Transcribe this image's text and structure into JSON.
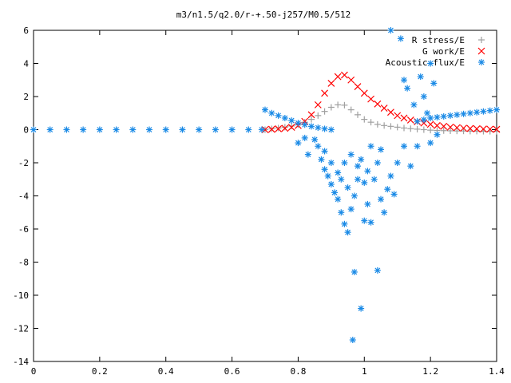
{
  "chart_data": {
    "type": "scatter",
    "title": "m3/n1.5/q2.0/r-+.50-j257/M0.5/512",
    "xlabel": "",
    "ylabel": "",
    "xlim": [
      0,
      1.4
    ],
    "ylim": [
      -14,
      6
    ],
    "xticks": [
      0,
      0.2,
      0.4,
      0.6,
      0.8,
      1,
      1.2,
      1.4
    ],
    "xtick_labels": [
      "0",
      "0.2",
      "0.4",
      "0.6",
      "0.8",
      "1",
      "1.2",
      "1.4"
    ],
    "yticks": [
      -14,
      -12,
      -10,
      -8,
      -6,
      -4,
      -2,
      0,
      2,
      4,
      6
    ],
    "ytick_labels": [
      "-14",
      "-12",
      "-10",
      "-8",
      "-6",
      "-4",
      "-2",
      "0",
      "2",
      "4",
      "6"
    ],
    "grid": false,
    "legend_position": "top-right",
    "series": [
      {
        "name": "R stress/E",
        "marker": "plus",
        "color": "#a0a0a0",
        "points": [
          [
            0.7,
            0.0
          ],
          [
            0.72,
            0.05
          ],
          [
            0.74,
            0.1
          ],
          [
            0.76,
            0.15
          ],
          [
            0.78,
            0.22
          ],
          [
            0.8,
            0.3
          ],
          [
            0.82,
            0.45
          ],
          [
            0.84,
            0.62
          ],
          [
            0.86,
            0.85
          ],
          [
            0.88,
            1.1
          ],
          [
            0.9,
            1.35
          ],
          [
            0.92,
            1.5
          ],
          [
            0.94,
            1.48
          ],
          [
            0.96,
            1.2
          ],
          [
            0.98,
            0.9
          ],
          [
            1.0,
            0.62
          ],
          [
            1.02,
            0.45
          ],
          [
            1.04,
            0.32
          ],
          [
            1.06,
            0.25
          ],
          [
            1.08,
            0.2
          ],
          [
            1.1,
            0.15
          ],
          [
            1.12,
            0.1
          ],
          [
            1.14,
            0.06
          ],
          [
            1.16,
            0.03
          ],
          [
            1.18,
            0.0
          ],
          [
            1.2,
            -0.03
          ],
          [
            1.22,
            -0.05
          ],
          [
            1.24,
            -0.06
          ],
          [
            1.26,
            -0.07
          ],
          [
            1.28,
            -0.08
          ],
          [
            1.3,
            -0.08
          ],
          [
            1.32,
            -0.09
          ],
          [
            1.34,
            -0.09
          ],
          [
            1.36,
            -0.1
          ],
          [
            1.38,
            -0.1
          ],
          [
            1.4,
            -0.1
          ]
        ]
      },
      {
        "name": "G work/E",
        "marker": "cross",
        "color": "#ff0000",
        "points": [
          [
            0.7,
            0.0
          ],
          [
            0.72,
            0.02
          ],
          [
            0.74,
            0.05
          ],
          [
            0.76,
            0.08
          ],
          [
            0.78,
            0.14
          ],
          [
            0.8,
            0.25
          ],
          [
            0.82,
            0.5
          ],
          [
            0.84,
            0.9
          ],
          [
            0.86,
            1.5
          ],
          [
            0.88,
            2.2
          ],
          [
            0.9,
            2.8
          ],
          [
            0.92,
            3.2
          ],
          [
            0.94,
            3.3
          ],
          [
            0.96,
            3.0
          ],
          [
            0.98,
            2.6
          ],
          [
            1.0,
            2.2
          ],
          [
            1.02,
            1.85
          ],
          [
            1.04,
            1.55
          ],
          [
            1.06,
            1.3
          ],
          [
            1.08,
            1.05
          ],
          [
            1.1,
            0.85
          ],
          [
            1.12,
            0.7
          ],
          [
            1.14,
            0.58
          ],
          [
            1.16,
            0.48
          ],
          [
            1.18,
            0.4
          ],
          [
            1.2,
            0.32
          ],
          [
            1.22,
            0.25
          ],
          [
            1.24,
            0.2
          ],
          [
            1.26,
            0.15
          ],
          [
            1.28,
            0.12
          ],
          [
            1.3,
            0.09
          ],
          [
            1.32,
            0.07
          ],
          [
            1.34,
            0.05
          ],
          [
            1.36,
            0.04
          ],
          [
            1.38,
            0.03
          ],
          [
            1.4,
            0.02
          ]
        ]
      },
      {
        "name": "Acoustic flux/E",
        "marker": "star",
        "color": "#1a8ae6",
        "points": [
          [
            0.0,
            0.0
          ],
          [
            0.05,
            0.0
          ],
          [
            0.1,
            0.0
          ],
          [
            0.15,
            0.0
          ],
          [
            0.2,
            0.0
          ],
          [
            0.25,
            0.0
          ],
          [
            0.3,
            0.0
          ],
          [
            0.35,
            0.0
          ],
          [
            0.4,
            0.0
          ],
          [
            0.45,
            0.0
          ],
          [
            0.5,
            0.0
          ],
          [
            0.55,
            0.0
          ],
          [
            0.6,
            0.0
          ],
          [
            0.65,
            0.0
          ],
          [
            0.69,
            0.0
          ],
          [
            0.7,
            1.2
          ],
          [
            0.72,
            1.0
          ],
          [
            0.74,
            0.85
          ],
          [
            0.76,
            0.7
          ],
          [
            0.78,
            0.55
          ],
          [
            0.8,
            0.4
          ],
          [
            0.82,
            0.3
          ],
          [
            0.84,
            0.2
          ],
          [
            0.86,
            0.12
          ],
          [
            0.88,
            0.05
          ],
          [
            0.9,
            0.0
          ],
          [
            1.16,
            0.5
          ],
          [
            1.18,
            0.6
          ],
          [
            1.2,
            0.7
          ],
          [
            1.22,
            0.75
          ],
          [
            1.24,
            0.8
          ],
          [
            1.26,
            0.85
          ],
          [
            1.28,
            0.9
          ],
          [
            1.3,
            0.95
          ],
          [
            1.32,
            1.0
          ],
          [
            1.34,
            1.05
          ],
          [
            1.36,
            1.1
          ],
          [
            1.38,
            1.15
          ],
          [
            1.4,
            1.2
          ],
          [
            0.8,
            -0.8
          ],
          [
            0.82,
            -0.5
          ],
          [
            0.83,
            -1.5
          ],
          [
            0.85,
            -0.6
          ],
          [
            0.86,
            -1.0
          ],
          [
            0.87,
            -1.8
          ],
          [
            0.88,
            -2.4
          ],
          [
            0.88,
            -1.3
          ],
          [
            0.89,
            -2.8
          ],
          [
            0.9,
            -3.3
          ],
          [
            0.9,
            -2.0
          ],
          [
            0.91,
            -3.8
          ],
          [
            0.92,
            -4.2
          ],
          [
            0.92,
            -2.6
          ],
          [
            0.93,
            -5.0
          ],
          [
            0.93,
            -3.0
          ],
          [
            0.94,
            -5.7
          ],
          [
            0.94,
            -2.0
          ],
          [
            0.95,
            -6.2
          ],
          [
            0.95,
            -3.5
          ],
          [
            0.96,
            -4.8
          ],
          [
            0.96,
            -1.5
          ],
          [
            0.97,
            -8.6
          ],
          [
            0.97,
            -4.0
          ],
          [
            0.98,
            -3.0
          ],
          [
            0.98,
            -2.2
          ],
          [
            0.99,
            -10.8
          ],
          [
            0.99,
            -1.8
          ],
          [
            1.0,
            -5.5
          ],
          [
            1.0,
            -3.2
          ],
          [
            1.01,
            -4.5
          ],
          [
            1.01,
            -2.5
          ],
          [
            1.02,
            -5.6
          ],
          [
            1.02,
            -1.0
          ],
          [
            1.03,
            -3.0
          ],
          [
            1.04,
            -8.5
          ],
          [
            1.04,
            -2.0
          ],
          [
            1.05,
            -4.2
          ],
          [
            1.05,
            -1.2
          ],
          [
            1.06,
            -5.0
          ],
          [
            1.07,
            -3.6
          ],
          [
            1.08,
            -2.8
          ],
          [
            1.08,
            6.0
          ],
          [
            1.09,
            -3.9
          ],
          [
            1.1,
            -2.0
          ],
          [
            1.11,
            5.5
          ],
          [
            1.12,
            -1.0
          ],
          [
            1.12,
            3.0
          ],
          [
            1.13,
            2.5
          ],
          [
            1.14,
            -2.2
          ],
          [
            1.15,
            1.5
          ],
          [
            1.16,
            -1.0
          ],
          [
            1.17,
            3.2
          ],
          [
            1.18,
            2.0
          ],
          [
            1.19,
            1.0
          ],
          [
            1.2,
            4.0
          ],
          [
            1.2,
            -0.8
          ],
          [
            1.21,
            2.8
          ],
          [
            1.22,
            -0.3
          ],
          [
            0.965,
            -12.7
          ]
        ]
      }
    ]
  }
}
